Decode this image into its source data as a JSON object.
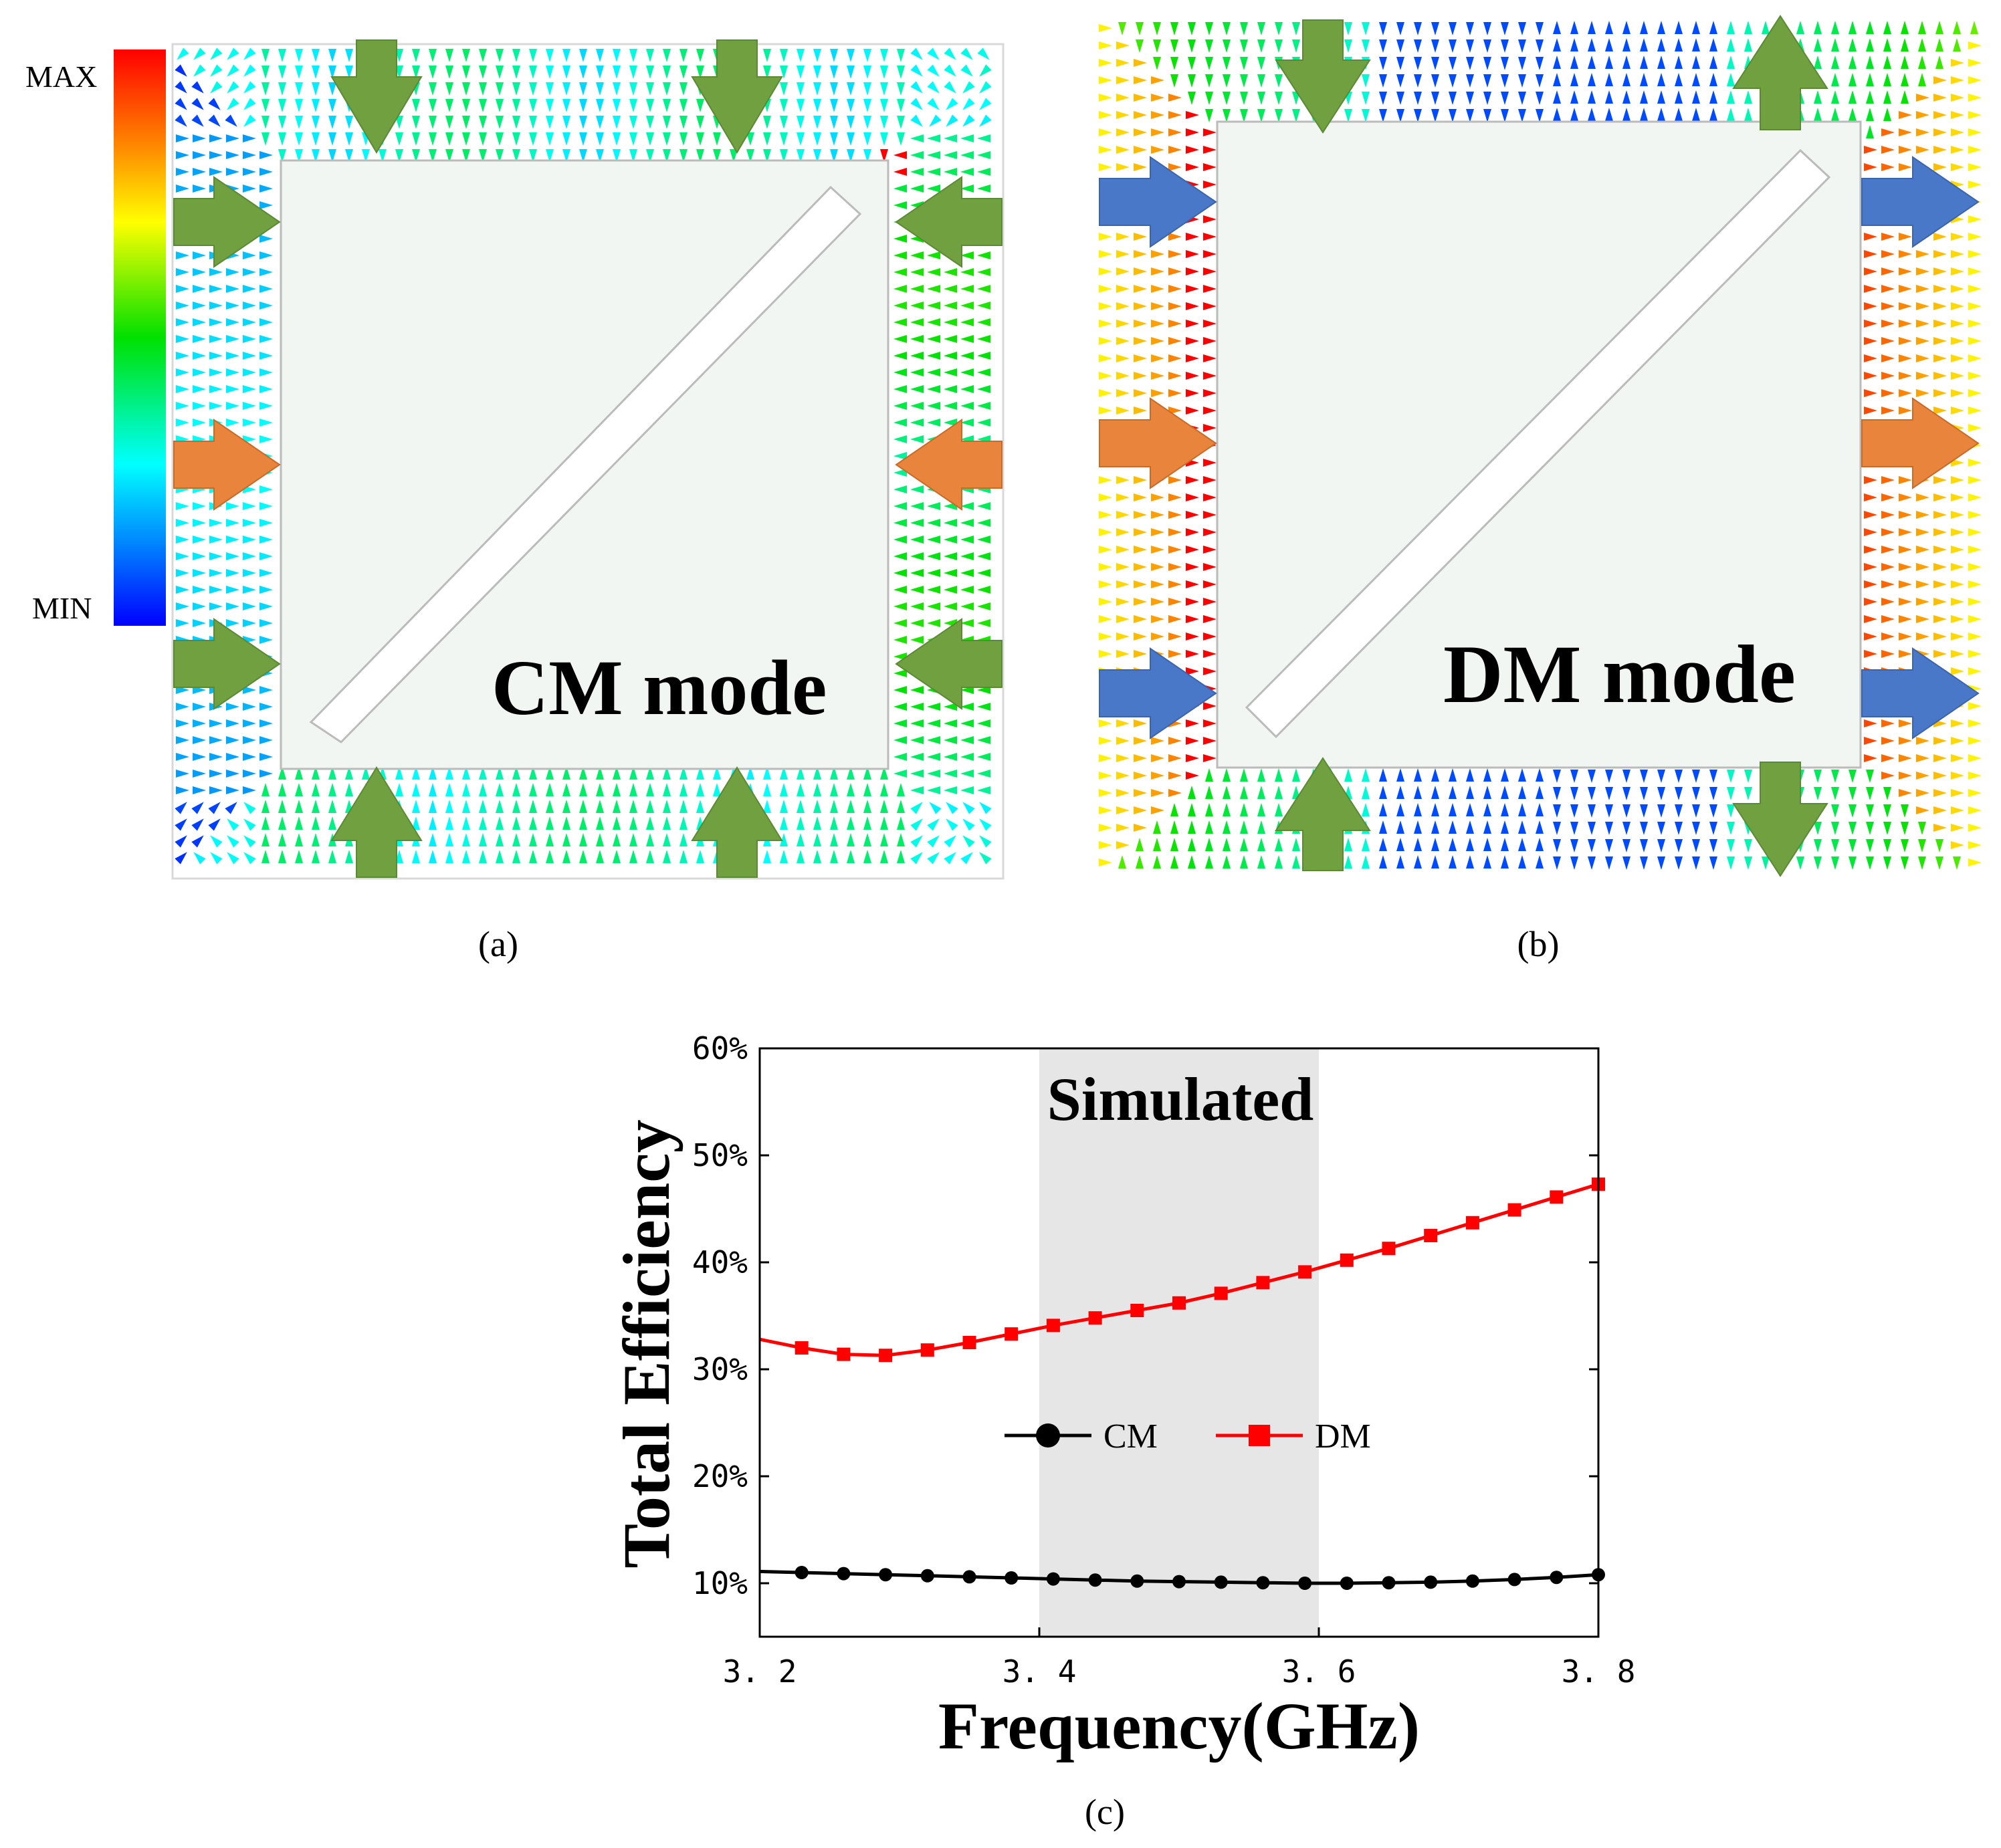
{
  "panels": {
    "a": {
      "label": "(a)",
      "mode_text": "CM mode"
    },
    "b": {
      "label": "(b)",
      "mode_text": "DM mode"
    },
    "c": {
      "label": "(c)"
    }
  },
  "colorbar": {
    "max_label": "MAX",
    "min_label": "MIN"
  },
  "colors": {
    "green_arrow": "#70a040",
    "orange_arrow": "#e8843c",
    "blue_arrow": "#4a78c8",
    "cm_series": "#000000",
    "dm_series": "#ff0000",
    "shade": "#e6e6e6"
  },
  "chart_data": {
    "type": "line",
    "title": "Simulated",
    "xlabel": "Frequency(GHz)",
    "ylabel": "Total Efficiency",
    "xlim": [
      3.2,
      3.8
    ],
    "ylim": [
      5,
      60
    ],
    "x_ticks": [
      3.2,
      3.4,
      3.6,
      3.8
    ],
    "x_tick_labels": [
      "3. 2",
      "3. 4",
      "3. 6",
      "3. 8"
    ],
    "y_ticks": [
      10,
      20,
      30,
      40,
      50,
      60
    ],
    "y_tick_labels": [
      "10%",
      "20%",
      "30%",
      "40%",
      "50%",
      "60%"
    ],
    "shaded_region": [
      3.4,
      3.6
    ],
    "legend_position": "center",
    "grid": false,
    "series": [
      {
        "name": "CM",
        "marker": "circle",
        "color": "#000000",
        "x": [
          3.2,
          3.23,
          3.26,
          3.29,
          3.32,
          3.35,
          3.38,
          3.41,
          3.44,
          3.47,
          3.5,
          3.53,
          3.56,
          3.59,
          3.62,
          3.65,
          3.68,
          3.71,
          3.74,
          3.77,
          3.8
        ],
        "y": [
          11.1,
          11.0,
          10.9,
          10.8,
          10.7,
          10.6,
          10.5,
          10.4,
          10.3,
          10.2,
          10.15,
          10.1,
          10.05,
          10.0,
          10.0,
          10.05,
          10.1,
          10.2,
          10.35,
          10.55,
          10.8
        ]
      },
      {
        "name": "DM",
        "marker": "square",
        "color": "#ff0000",
        "x": [
          3.2,
          3.23,
          3.26,
          3.29,
          3.32,
          3.35,
          3.38,
          3.41,
          3.44,
          3.47,
          3.5,
          3.53,
          3.56,
          3.59,
          3.62,
          3.65,
          3.68,
          3.71,
          3.74,
          3.77,
          3.8
        ],
        "y": [
          32.8,
          32.0,
          31.4,
          31.3,
          31.8,
          32.5,
          33.3,
          34.1,
          34.8,
          35.5,
          36.2,
          37.1,
          38.1,
          39.1,
          40.2,
          41.3,
          42.5,
          43.7,
          44.9,
          46.1,
          47.3
        ]
      }
    ]
  }
}
